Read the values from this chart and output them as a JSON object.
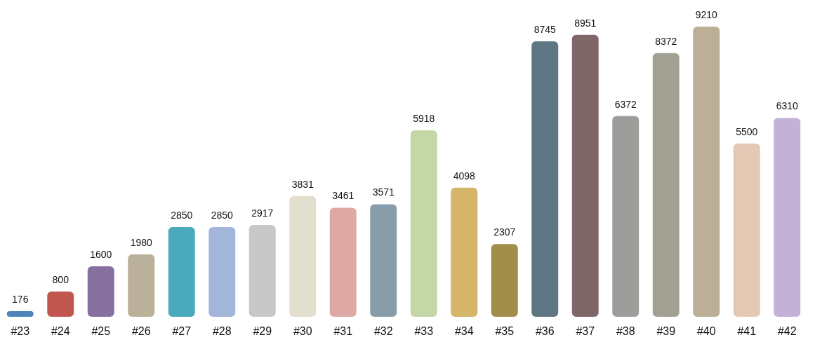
{
  "chart_data": {
    "type": "bar",
    "categories": [
      "#23",
      "#24",
      "#25",
      "#26",
      "#27",
      "#28",
      "#29",
      "#30",
      "#31",
      "#32",
      "#33",
      "#34",
      "#35",
      "#36",
      "#37",
      "#38",
      "#39",
      "#40",
      "#41",
      "#42"
    ],
    "values": [
      176,
      800,
      1600,
      1980,
      2850,
      2850,
      2917,
      3831,
      3461,
      3571,
      5918,
      4098,
      2307,
      8745,
      8951,
      6372,
      8372,
      9210,
      5500,
      6310
    ],
    "colors": [
      "#4e84b8",
      "#c0574f",
      "#8670a0",
      "#bbb099",
      "#4aaabb",
      "#a3b6d9",
      "#c8c8c8",
      "#e2dfcf",
      "#dea8a4",
      "#899ca9",
      "#c5d7a7",
      "#d4b56a",
      "#a08e4a",
      "#5f7782",
      "#7f6669",
      "#9d9d9b",
      "#a2a093",
      "#bbaf97",
      "#e4c8b4",
      "#c3b2d8"
    ],
    "data_labels": true
  }
}
